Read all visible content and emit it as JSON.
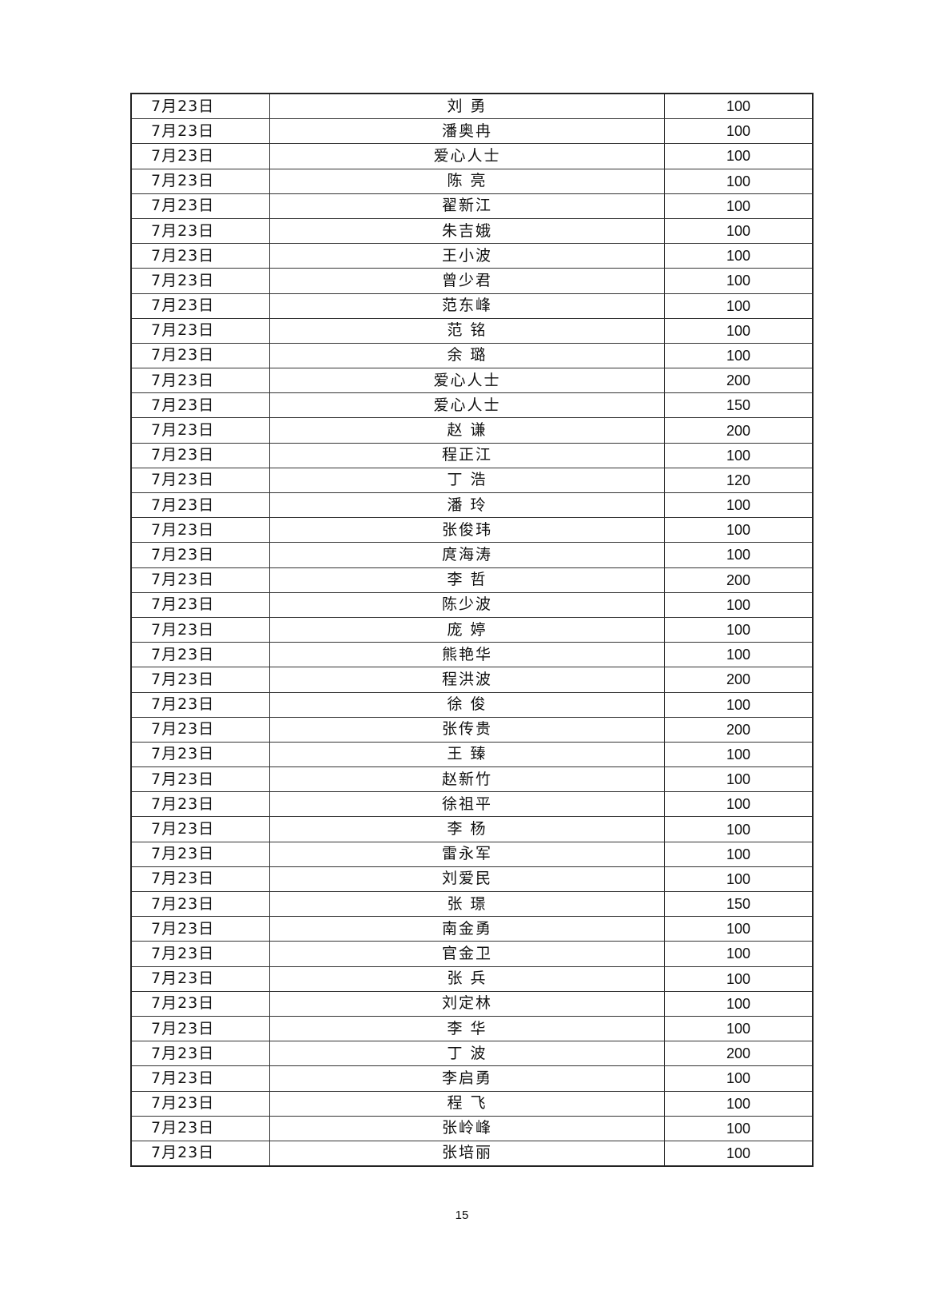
{
  "rows": [
    [
      "7月23日",
      "刘 勇",
      "100"
    ],
    [
      "7月23日",
      "潘奥冉",
      "100"
    ],
    [
      "7月23日",
      "爱心人士",
      "100"
    ],
    [
      "7月23日",
      "陈 亮",
      "100"
    ],
    [
      "7月23日",
      "翟新江",
      "100"
    ],
    [
      "7月23日",
      "朱吉娥",
      "100"
    ],
    [
      "7月23日",
      "王小波",
      "100"
    ],
    [
      "7月23日",
      "曾少君",
      "100"
    ],
    [
      "7月23日",
      "范东峰",
      "100"
    ],
    [
      "7月23日",
      "范 铭",
      "100"
    ],
    [
      "7月23日",
      "余 璐",
      "100"
    ],
    [
      "7月23日",
      "爱心人士",
      "200"
    ],
    [
      "7月23日",
      "爱心人士",
      "150"
    ],
    [
      "7月23日",
      "赵 谦",
      "200"
    ],
    [
      "7月23日",
      "程正江",
      "100"
    ],
    [
      "7月23日",
      "丁 浩",
      "120"
    ],
    [
      "7月23日",
      "潘 玲",
      "100"
    ],
    [
      "7月23日",
      "张俊玮",
      "100"
    ],
    [
      "7月23日",
      "庹海涛",
      "100"
    ],
    [
      "7月23日",
      "李 哲",
      "200"
    ],
    [
      "7月23日",
      "陈少波",
      "100"
    ],
    [
      "7月23日",
      "庞 婷",
      "100"
    ],
    [
      "7月23日",
      "熊艳华",
      "100"
    ],
    [
      "7月23日",
      "程洪波",
      "200"
    ],
    [
      "7月23日",
      "徐 俊",
      "100"
    ],
    [
      "7月23日",
      "张传贵",
      "200"
    ],
    [
      "7月23日",
      "王 臻",
      "100"
    ],
    [
      "7月23日",
      "赵新竹",
      "100"
    ],
    [
      "7月23日",
      "徐祖平",
      "100"
    ],
    [
      "7月23日",
      "李 杨",
      "100"
    ],
    [
      "7月23日",
      "雷永军",
      "100"
    ],
    [
      "7月23日",
      "刘爱民",
      "100"
    ],
    [
      "7月23日",
      "张 璟",
      "150"
    ],
    [
      "7月23日",
      "南金勇",
      "100"
    ],
    [
      "7月23日",
      "官金卫",
      "100"
    ],
    [
      "7月23日",
      "张 兵",
      "100"
    ],
    [
      "7月23日",
      "刘定林",
      "100"
    ],
    [
      "7月23日",
      "李 华",
      "100"
    ],
    [
      "7月23日",
      "丁 波",
      "200"
    ],
    [
      "7月23日",
      "李启勇",
      "100"
    ],
    [
      "7月23日",
      "程 飞",
      "100"
    ],
    [
      "7月23日",
      "张岭峰",
      "100"
    ],
    [
      "7月23日",
      "张培丽",
      "100"
    ]
  ],
  "page_number": "15"
}
